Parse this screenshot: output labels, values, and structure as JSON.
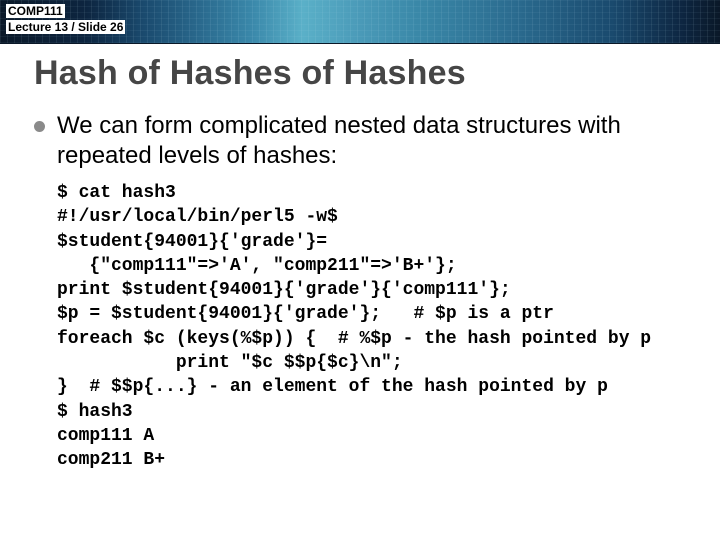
{
  "header": {
    "course": "COMP111",
    "lecture_slide": "Lecture 13 / Slide 26",
    "banner_colors": {
      "dark": "#0a1828",
      "midnight": "#0d2540",
      "navy": "#1a4a6e",
      "steel": "#2a6a8e",
      "ocean": "#3a88aa",
      "sky": "#5ab0c8"
    }
  },
  "title": {
    "text": "Hash of Hashes of Hashes",
    "color": "#464646",
    "fontsize": 34,
    "weight": "bold"
  },
  "body": {
    "bullet_color": "#8a8a8a",
    "lead": "We can form complicated nested data structures with repeated levels of hashes:",
    "lead_fontsize": 24,
    "code_font": "Courier New",
    "code_fontsize": 18,
    "code_lines": {
      "l0": "$ cat hash3",
      "l1": "#!/usr/local/bin/perl5 -w$",
      "l2": "$student{94001}{'grade'}=",
      "l3": "   {\"comp111\"=>'A', \"comp211\"=>'B+'};",
      "l4": "print $student{94001}{'grade'}{'comp111'};",
      "l5": "$p = $student{94001}{'grade'};   # $p is a ptr",
      "l6": "foreach $c (keys(%$p)) {  # %$p - the hash pointed by p",
      "l7": "           print \"$c $$p{$c}\\n\";",
      "l8": "}  # $$p{...} - an element of the hash pointed by p",
      "l9": "$ hash3",
      "l10": "comp111 A",
      "l11": "comp211 B+"
    }
  }
}
